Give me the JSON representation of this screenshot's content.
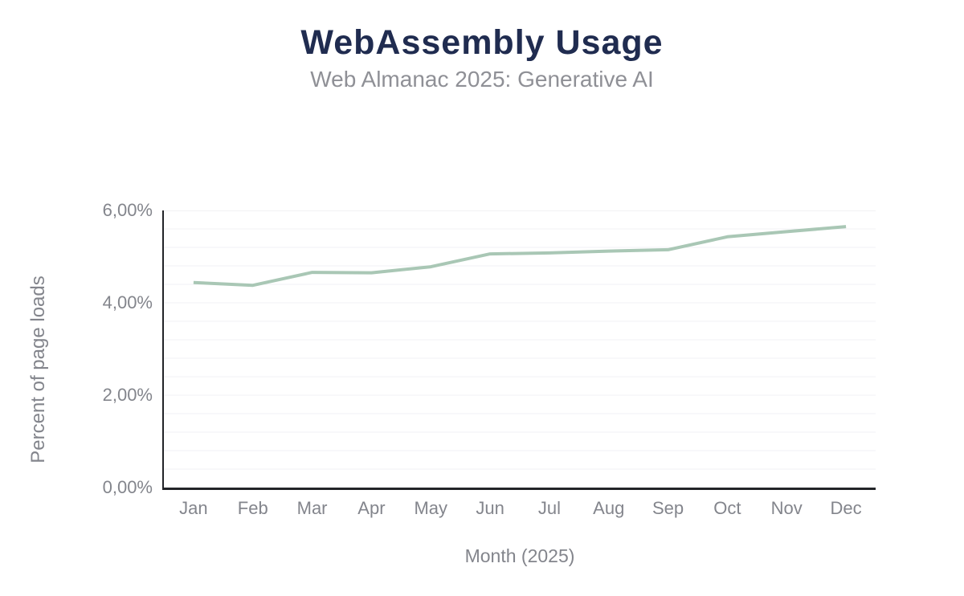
{
  "header": {
    "title": "WebAssembly Usage",
    "subtitle": "Web Almanac 2025: Generative AI"
  },
  "chart_data": {
    "type": "line",
    "title": "WebAssembly Usage",
    "subtitle": "Web Almanac 2025: Generative AI",
    "xlabel": "Month (2025)",
    "ylabel": "Percent of page loads",
    "categories": [
      "Jan",
      "Feb",
      "Mar",
      "Apr",
      "May",
      "Jun",
      "Jul",
      "Aug",
      "Sep",
      "Oct",
      "Nov",
      "Dec"
    ],
    "series": [
      {
        "name": "WebAssembly usage",
        "values": [
          4.44,
          4.38,
          4.66,
          4.65,
          4.78,
          5.06,
          5.08,
          5.12,
          5.15,
          5.43,
          5.54,
          5.65
        ]
      }
    ],
    "unit": "%",
    "ylim": [
      0,
      6
    ],
    "ytick_step": 2,
    "ytick_labels": [
      "0,00%",
      "2,00%",
      "4,00%",
      "6,00%"
    ],
    "ytick_values": [
      0,
      2,
      4,
      6
    ],
    "minor_grid_step": 0.4,
    "grid": true,
    "legend": "none"
  },
  "colors": {
    "background": "#ffffff",
    "title": "#202c50",
    "subtitle": "#8f9096",
    "tick_text": "#83858c",
    "line": "#a9c7b5",
    "gridline": "#f2f2f4",
    "axis": "#222428"
  }
}
